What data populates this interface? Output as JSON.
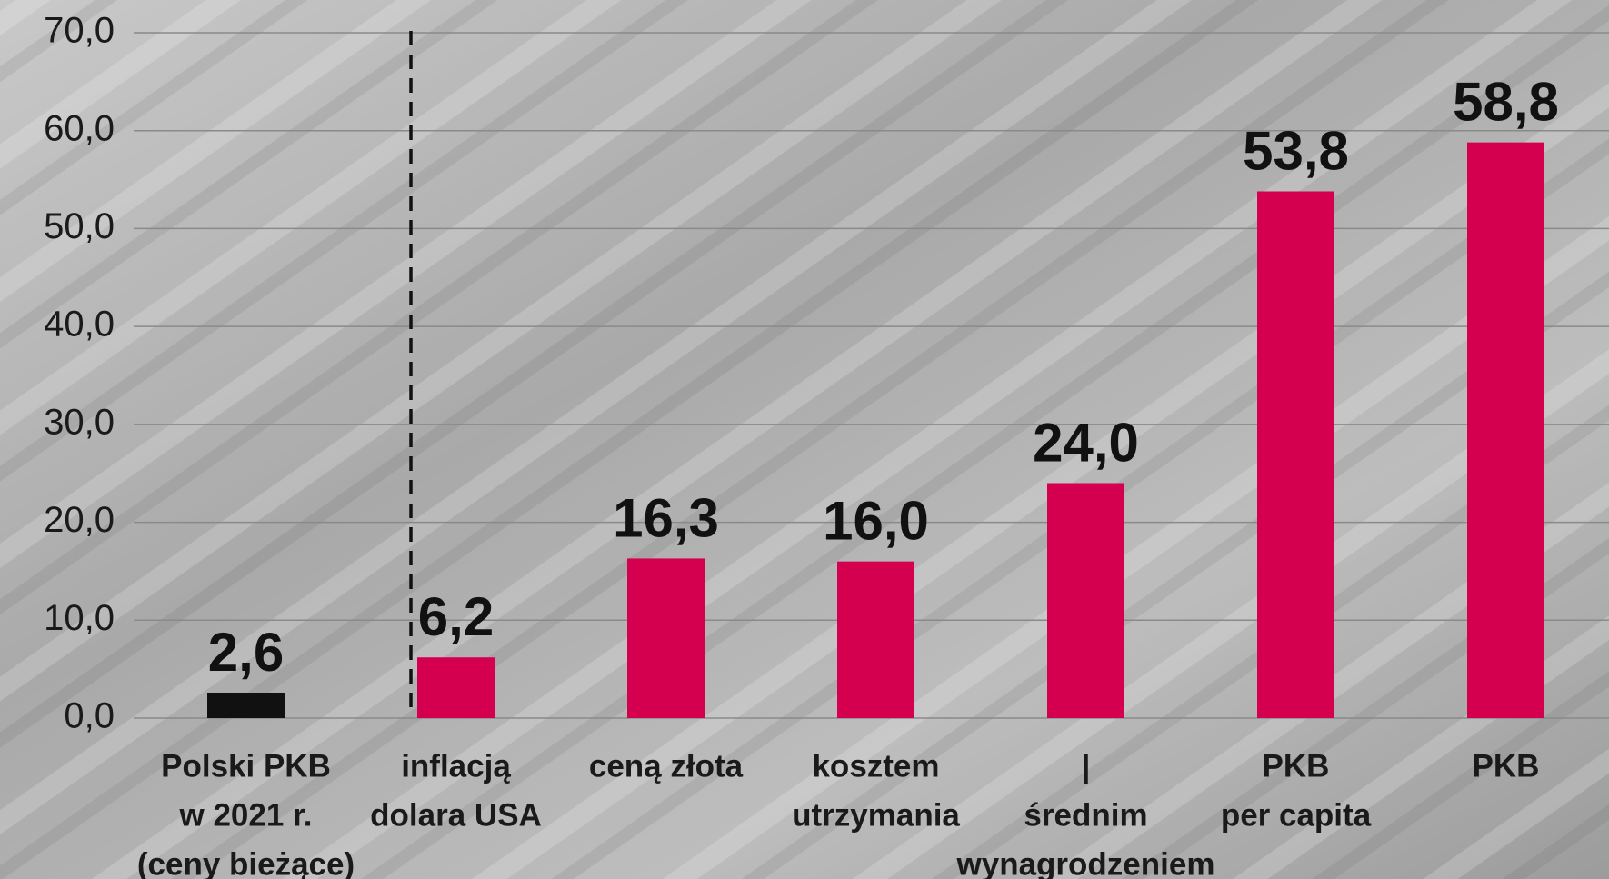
{
  "chart_data": {
    "type": "bar",
    "categories": [
      [
        "Polski PKB",
        "w 2021 r.",
        "(ceny bieżące)"
      ],
      [
        "inflacją",
        "dolara USA"
      ],
      [
        "ceną złota"
      ],
      [
        "kosztem",
        "utrzymania"
      ],
      [
        "|",
        "średnim",
        "wynagrodzeniem"
      ],
      [
        "PKB",
        "per capita"
      ],
      [
        "PKB"
      ]
    ],
    "values": [
      2.6,
      6.2,
      16.3,
      16.0,
      24.0,
      53.8,
      58.8
    ],
    "value_labels": [
      "2,6",
      "6,2",
      "16,3",
      "16,0",
      "24,0",
      "53,8",
      "58,8"
    ],
    "colors": [
      "#111111",
      "#d4004f",
      "#d4004f",
      "#d4004f",
      "#d4004f",
      "#d4004f",
      "#d4004f"
    ],
    "ylim": [
      0,
      70
    ],
    "yticks": [
      {
        "value": 0,
        "label": "0,0"
      },
      {
        "value": 10,
        "label": "10,0"
      },
      {
        "value": 20,
        "label": "20,0"
      },
      {
        "value": 30,
        "label": "30,0"
      },
      {
        "value": 40,
        "label": "40,0"
      },
      {
        "value": 50,
        "label": "50,0"
      },
      {
        "value": 60,
        "label": "60,0"
      },
      {
        "value": 70,
        "label": "70,0"
      }
    ],
    "grid": true
  }
}
